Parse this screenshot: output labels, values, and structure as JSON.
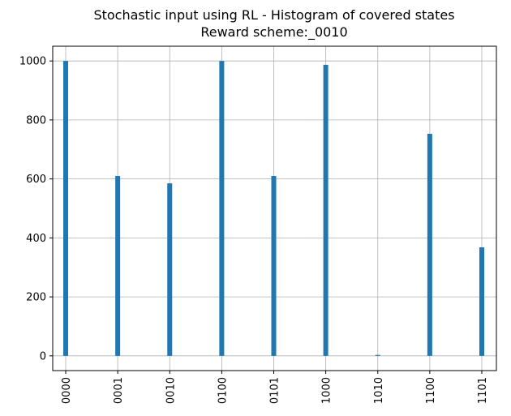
{
  "chart_data": {
    "type": "bar",
    "title": "Stochastic input using RL - Histogram of covered states",
    "subtitle": "Reward scheme:_0010",
    "xlabel": "",
    "ylabel": "",
    "categories": [
      "0000",
      "0001",
      "0010",
      "0100",
      "0101",
      "1000",
      "1010",
      "1100",
      "1101"
    ],
    "values": [
      1000,
      610,
      585,
      1000,
      610,
      987,
      3,
      753,
      368
    ],
    "ylim": [
      -50,
      1050
    ],
    "yticks": [
      "0",
      "200",
      "400",
      "600",
      "800",
      "1000"
    ],
    "grid": true,
    "bar_color": "#1f77b4"
  }
}
